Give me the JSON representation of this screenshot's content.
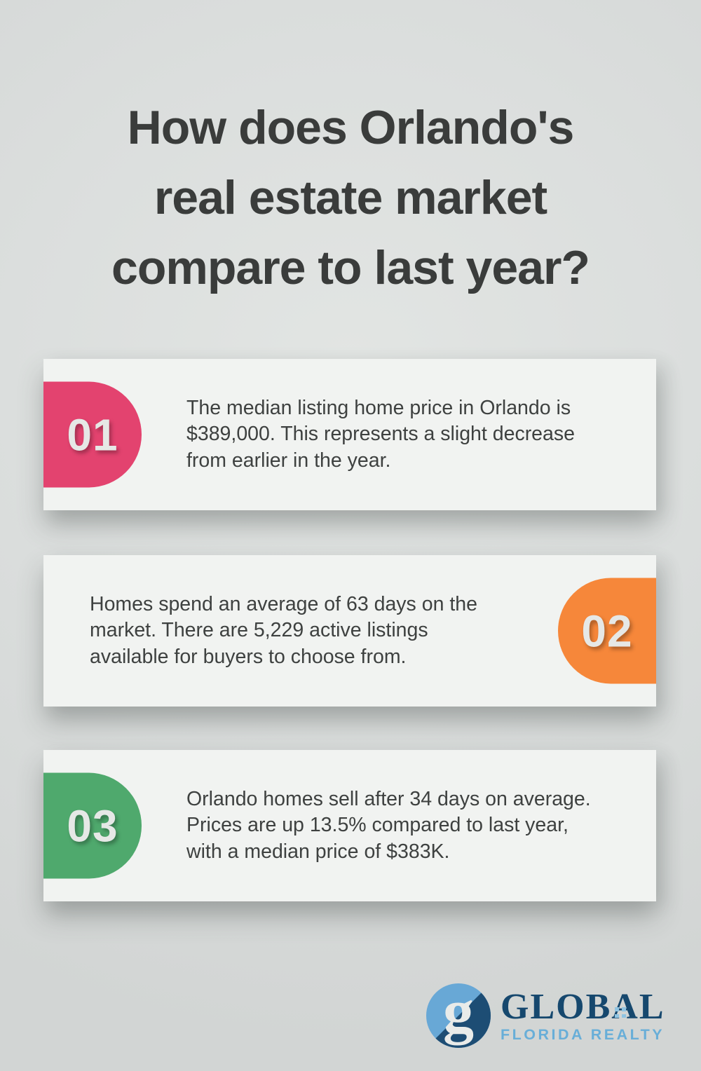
{
  "page": {
    "background_color": "#dbdedd",
    "title_color": "#3a3c3b",
    "title_lines": [
      "How does Orlando's",
      "real estate market",
      "compare to last year?"
    ]
  },
  "cards": [
    {
      "number": "01",
      "accent_color": "#E3436F",
      "badge_side": "left",
      "lines": [
        "The median listing home price in Orlando is",
        "$389,000. This represents a slight decrease",
        "from earlier in the year."
      ]
    },
    {
      "number": "02",
      "accent_color": "#F6873A",
      "badge_side": "right",
      "lines": [
        "Homes spend an average of 63 days on the",
        "market. There are 5,229 active listings",
        "available for buyers to choose from."
      ]
    },
    {
      "number": "03",
      "accent_color": "#4FA96D",
      "badge_side": "left",
      "lines": [
        "Orlando homes sell after 34 days on average.",
        "Prices are up 13.5% compared to last year,",
        "with a median price of $383K."
      ]
    }
  ],
  "logo": {
    "monogram": "g",
    "monogram_color": "#e9ebe9",
    "circle_light_color": "#68a8d6",
    "circle_dark_color": "#1d4d74",
    "name": "GLOBAL",
    "name_color": "#16486e",
    "tagline": "FLORIDA REALTY",
    "tagline_color": "#68aed8",
    "window_dot_color": "#8fc4e2"
  }
}
